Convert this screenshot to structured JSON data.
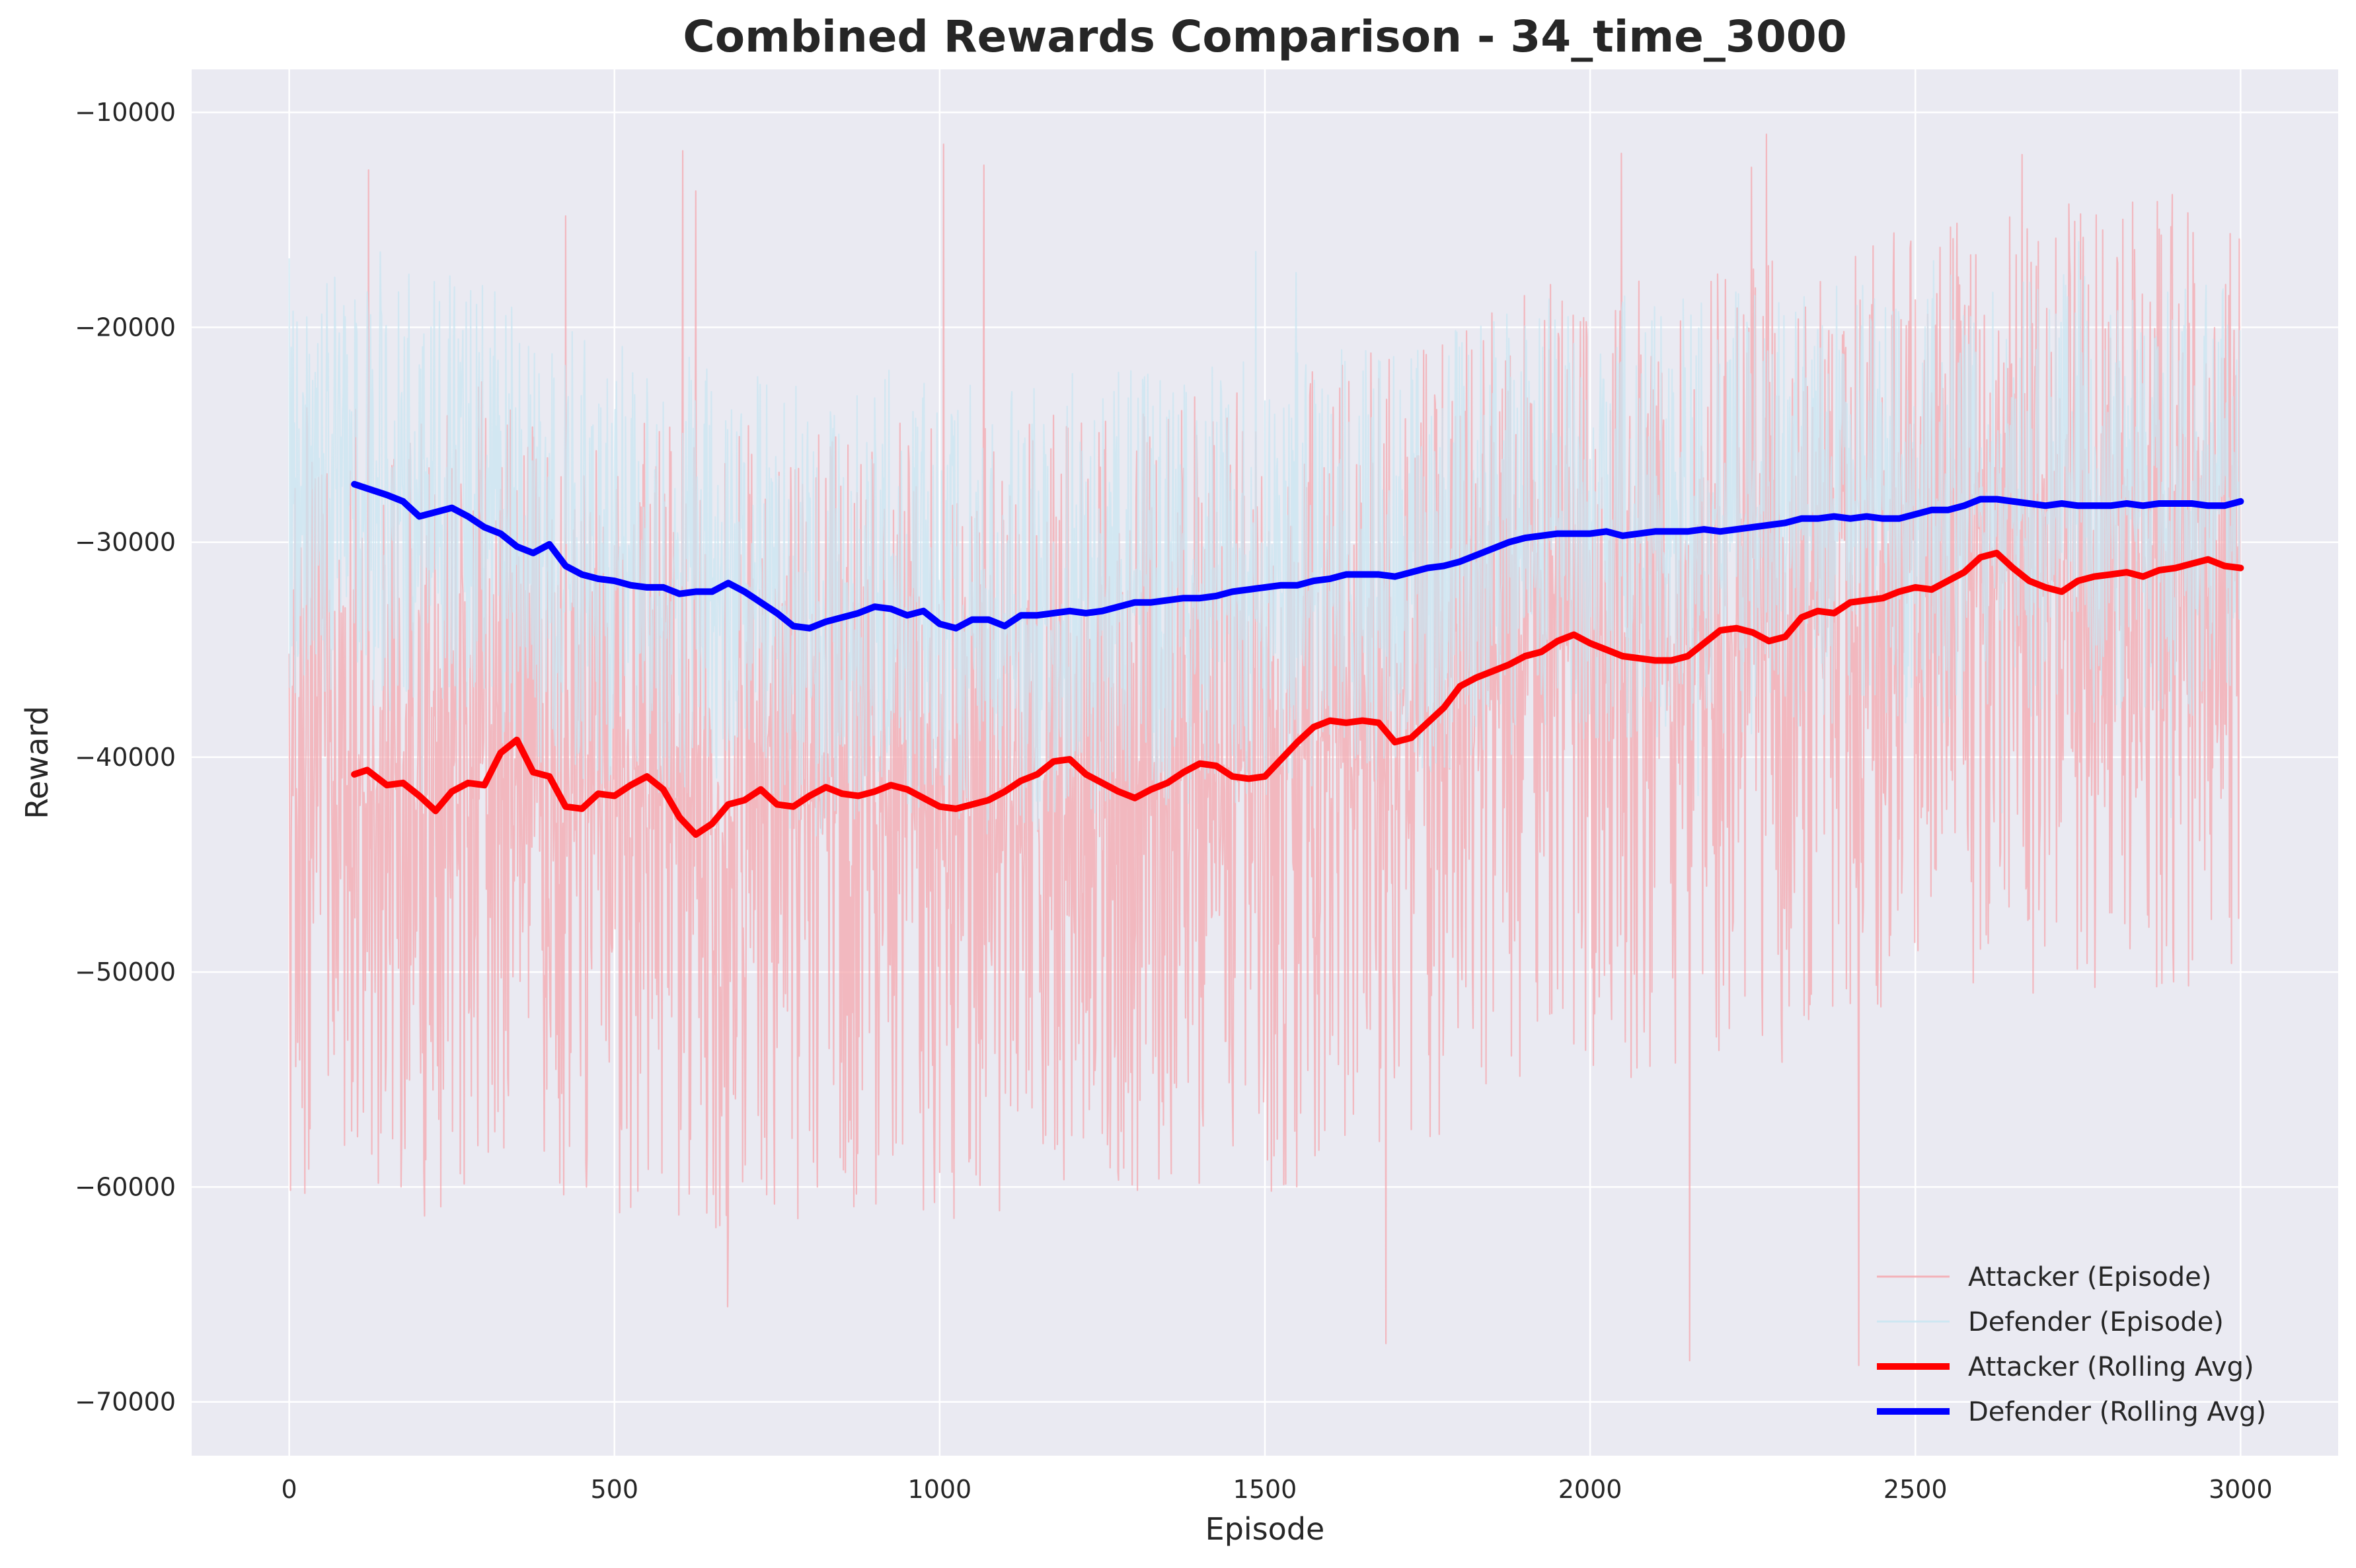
{
  "chart_data": {
    "type": "line",
    "title": "Combined Rewards Comparison - 34_time_3000",
    "xlabel": "Episode",
    "ylabel": "Reward",
    "xlim": [
      -150,
      3150
    ],
    "ylim": [
      -72500,
      -8000
    ],
    "x_ticks": [
      0,
      500,
      1000,
      1500,
      2000,
      2500,
      3000
    ],
    "x_tick_labels": [
      "0",
      "500",
      "1000",
      "1500",
      "2000",
      "2500",
      "3000"
    ],
    "y_ticks": [
      -10000,
      -20000,
      -30000,
      -40000,
      -50000,
      -60000,
      -70000
    ],
    "y_tick_labels": [
      "−10000",
      "−20000",
      "−30000",
      "−40000",
      "−50000",
      "−60000",
      "−70000"
    ],
    "grid": true,
    "legend_position": "lower right",
    "series": [
      {
        "name": "Attacker (Episode)",
        "color": "#f4a7ae",
        "style": "thin-noisy",
        "episodes": 3000,
        "x": [
          0,
          50,
          100,
          150,
          200,
          250,
          300,
          350,
          400,
          450,
          500,
          550,
          600,
          650,
          700,
          750,
          800,
          850,
          900,
          950,
          1000,
          1050,
          1100,
          1150,
          1200,
          1250,
          1300,
          1350,
          1400,
          1450,
          1500,
          1550,
          1600,
          1650,
          1700,
          1750,
          1800,
          1850,
          1900,
          1950,
          2000,
          2050,
          2100,
          2150,
          2200,
          2250,
          2300,
          2350,
          2400,
          2450,
          2500,
          2550,
          2600,
          2650,
          2700,
          2750,
          2800,
          2850,
          2900,
          2950,
          3000
        ],
        "y": [
          -41000,
          -41000,
          -41000,
          -41500,
          -42000,
          -41500,
          -40000,
          -40500,
          -41000,
          -42000,
          -42000,
          -41000,
          -42000,
          -43500,
          -42000,
          -42000,
          -42000,
          -41500,
          -41500,
          -41500,
          -42000,
          -42000,
          -42000,
          -41000,
          -40500,
          -41000,
          -41500,
          -41500,
          -40500,
          -40500,
          -41000,
          -40500,
          -38500,
          -38500,
          -38500,
          -38500,
          -36500,
          -36000,
          -35500,
          -34500,
          -34500,
          -35000,
          -35500,
          -35000,
          -34000,
          -34000,
          -34500,
          -33500,
          -33000,
          -32500,
          -32000,
          -32000,
          -30500,
          -31500,
          -32000,
          -31500,
          -31500,
          -31500,
          -31000,
          -31000,
          -31000
        ],
        "spread_below": 9000,
        "spread_above": 8000,
        "extremes_min": -69500,
        "extremes_max": -11000
      },
      {
        "name": "Defender (Episode)",
        "color": "#c9e6f2",
        "style": "thin-noisy",
        "episodes": 3000,
        "x": [
          0,
          50,
          100,
          150,
          200,
          250,
          300,
          350,
          400,
          450,
          500,
          550,
          600,
          650,
          700,
          750,
          800,
          850,
          900,
          950,
          1000,
          1050,
          1100,
          1150,
          1200,
          1250,
          1300,
          1350,
          1400,
          1450,
          1500,
          1550,
          1600,
          1650,
          1700,
          1750,
          1800,
          1850,
          1900,
          1950,
          2000,
          2050,
          2100,
          2150,
          2200,
          2250,
          2300,
          2350,
          2400,
          2450,
          2500,
          2550,
          2600,
          2650,
          2700,
          2750,
          2800,
          2850,
          2900,
          2950,
          3000
        ],
        "y": [
          -27500,
          -27500,
          -27500,
          -28000,
          -28500,
          -28500,
          -29000,
          -30000,
          -30500,
          -31500,
          -31500,
          -32000,
          -32000,
          -32500,
          -32000,
          -33000,
          -34000,
          -33500,
          -33000,
          -33000,
          -33500,
          -33500,
          -34000,
          -33500,
          -33000,
          -33000,
          -32500,
          -32500,
          -32500,
          -32500,
          -32000,
          -32000,
          -31500,
          -31500,
          -31500,
          -31500,
          -31000,
          -30500,
          -30000,
          -29500,
          -29500,
          -29500,
          -29500,
          -29500,
          -29500,
          -29000,
          -29000,
          -29000,
          -28500,
          -28500,
          -28500,
          -28500,
          -28000,
          -28000,
          -28500,
          -28500,
          -28500,
          -28500,
          -28500,
          -28500,
          -28000
        ],
        "spread_below": 4500,
        "spread_above": 5000,
        "extremes_min": -44000,
        "extremes_max": -16000
      },
      {
        "name": "Attacker (Rolling Avg)",
        "color": "#ff0000",
        "style": "thick",
        "x": [
          100,
          120,
          150,
          175,
          200,
          225,
          250,
          275,
          300,
          325,
          350,
          375,
          400,
          425,
          450,
          475,
          500,
          525,
          550,
          575,
          600,
          625,
          650,
          675,
          700,
          725,
          750,
          775,
          800,
          825,
          850,
          875,
          900,
          925,
          950,
          975,
          1000,
          1025,
          1050,
          1075,
          1100,
          1125,
          1150,
          1175,
          1200,
          1225,
          1250,
          1275,
          1300,
          1325,
          1350,
          1375,
          1400,
          1425,
          1450,
          1475,
          1500,
          1525,
          1550,
          1575,
          1600,
          1625,
          1650,
          1675,
          1700,
          1725,
          1750,
          1775,
          1800,
          1825,
          1850,
          1875,
          1900,
          1925,
          1950,
          1975,
          2000,
          2025,
          2050,
          2075,
          2100,
          2125,
          2150,
          2175,
          2200,
          2225,
          2250,
          2275,
          2300,
          2325,
          2350,
          2375,
          2400,
          2425,
          2450,
          2475,
          2500,
          2525,
          2550,
          2575,
          2600,
          2625,
          2650,
          2675,
          2700,
          2725,
          2750,
          2775,
          2800,
          2825,
          2850,
          2875,
          2900,
          2925,
          2950,
          2975,
          3000
        ],
        "y": [
          -40800,
          -40600,
          -41300,
          -41200,
          -41800,
          -42500,
          -41600,
          -41200,
          -41300,
          -39800,
          -39200,
          -40700,
          -40900,
          -42300,
          -42400,
          -41700,
          -41800,
          -41300,
          -40900,
          -41500,
          -42800,
          -43600,
          -43100,
          -42200,
          -42000,
          -41500,
          -42200,
          -42300,
          -41800,
          -41400,
          -41700,
          -41800,
          -41600,
          -41300,
          -41500,
          -41900,
          -42300,
          -42400,
          -42200,
          -42000,
          -41600,
          -41100,
          -40800,
          -40200,
          -40100,
          -40800,
          -41200,
          -41600,
          -41900,
          -41500,
          -41200,
          -40700,
          -40300,
          -40400,
          -40900,
          -41000,
          -40900,
          -40100,
          -39300,
          -38600,
          -38300,
          -38400,
          -38300,
          -38400,
          -39300,
          -39100,
          -38400,
          -37700,
          -36700,
          -36300,
          -36000,
          -35700,
          -35300,
          -35100,
          -34600,
          -34300,
          -34700,
          -35000,
          -35300,
          -35400,
          -35500,
          -35500,
          -35300,
          -34700,
          -34100,
          -34000,
          -34200,
          -34600,
          -34400,
          -33500,
          -33200,
          -33300,
          -32800,
          -32700,
          -32600,
          -32300,
          -32100,
          -32200,
          -31800,
          -31400,
          -30700,
          -30500,
          -31200,
          -31800,
          -32100,
          -32300,
          -31800,
          -31600,
          -31500,
          -31400,
          -31600,
          -31300,
          -31200,
          -31000,
          -30800,
          -31100,
          -31200
        ]
      },
      {
        "name": "Defender (Rolling Avg)",
        "color": "#0000ff",
        "style": "thick",
        "x": [
          100,
          120,
          150,
          175,
          200,
          225,
          250,
          275,
          300,
          325,
          350,
          375,
          400,
          425,
          450,
          475,
          500,
          525,
          550,
          575,
          600,
          625,
          650,
          675,
          700,
          725,
          750,
          775,
          800,
          825,
          850,
          875,
          900,
          925,
          950,
          975,
          1000,
          1025,
          1050,
          1075,
          1100,
          1125,
          1150,
          1175,
          1200,
          1225,
          1250,
          1275,
          1300,
          1325,
          1350,
          1375,
          1400,
          1425,
          1450,
          1475,
          1500,
          1525,
          1550,
          1575,
          1600,
          1625,
          1650,
          1675,
          1700,
          1725,
          1750,
          1775,
          1800,
          1825,
          1850,
          1875,
          1900,
          1925,
          1950,
          1975,
          2000,
          2025,
          2050,
          2075,
          2100,
          2125,
          2150,
          2175,
          2200,
          2225,
          2250,
          2275,
          2300,
          2325,
          2350,
          2375,
          2400,
          2425,
          2450,
          2475,
          2500,
          2525,
          2550,
          2575,
          2600,
          2625,
          2650,
          2675,
          2700,
          2725,
          2750,
          2775,
          2800,
          2825,
          2850,
          2875,
          2900,
          2925,
          2950,
          2975,
          3000
        ],
        "y": [
          -27300,
          -27500,
          -27800,
          -28100,
          -28800,
          -28600,
          -28400,
          -28800,
          -29300,
          -29600,
          -30200,
          -30500,
          -30100,
          -31100,
          -31500,
          -31700,
          -31800,
          -32000,
          -32100,
          -32100,
          -32400,
          -32300,
          -32300,
          -31900,
          -32300,
          -32800,
          -33300,
          -33900,
          -34000,
          -33700,
          -33500,
          -33300,
          -33000,
          -33100,
          -33400,
          -33200,
          -33800,
          -34000,
          -33600,
          -33600,
          -33900,
          -33400,
          -33400,
          -33300,
          -33200,
          -33300,
          -33200,
          -33000,
          -32800,
          -32800,
          -32700,
          -32600,
          -32600,
          -32500,
          -32300,
          -32200,
          -32100,
          -32000,
          -32000,
          -31800,
          -31700,
          -31500,
          -31500,
          -31500,
          -31600,
          -31400,
          -31200,
          -31100,
          -30900,
          -30600,
          -30300,
          -30000,
          -29800,
          -29700,
          -29600,
          -29600,
          -29600,
          -29500,
          -29700,
          -29600,
          -29500,
          -29500,
          -29500,
          -29400,
          -29500,
          -29400,
          -29300,
          -29200,
          -29100,
          -28900,
          -28900,
          -28800,
          -28900,
          -28800,
          -28900,
          -28900,
          -28700,
          -28500,
          -28500,
          -28300,
          -28000,
          -28000,
          -28100,
          -28200,
          -28300,
          -28200,
          -28300,
          -28300,
          -28300,
          -28200,
          -28300,
          -28200,
          -28200,
          -28200,
          -28300,
          -28300,
          -28100
        ]
      }
    ]
  }
}
